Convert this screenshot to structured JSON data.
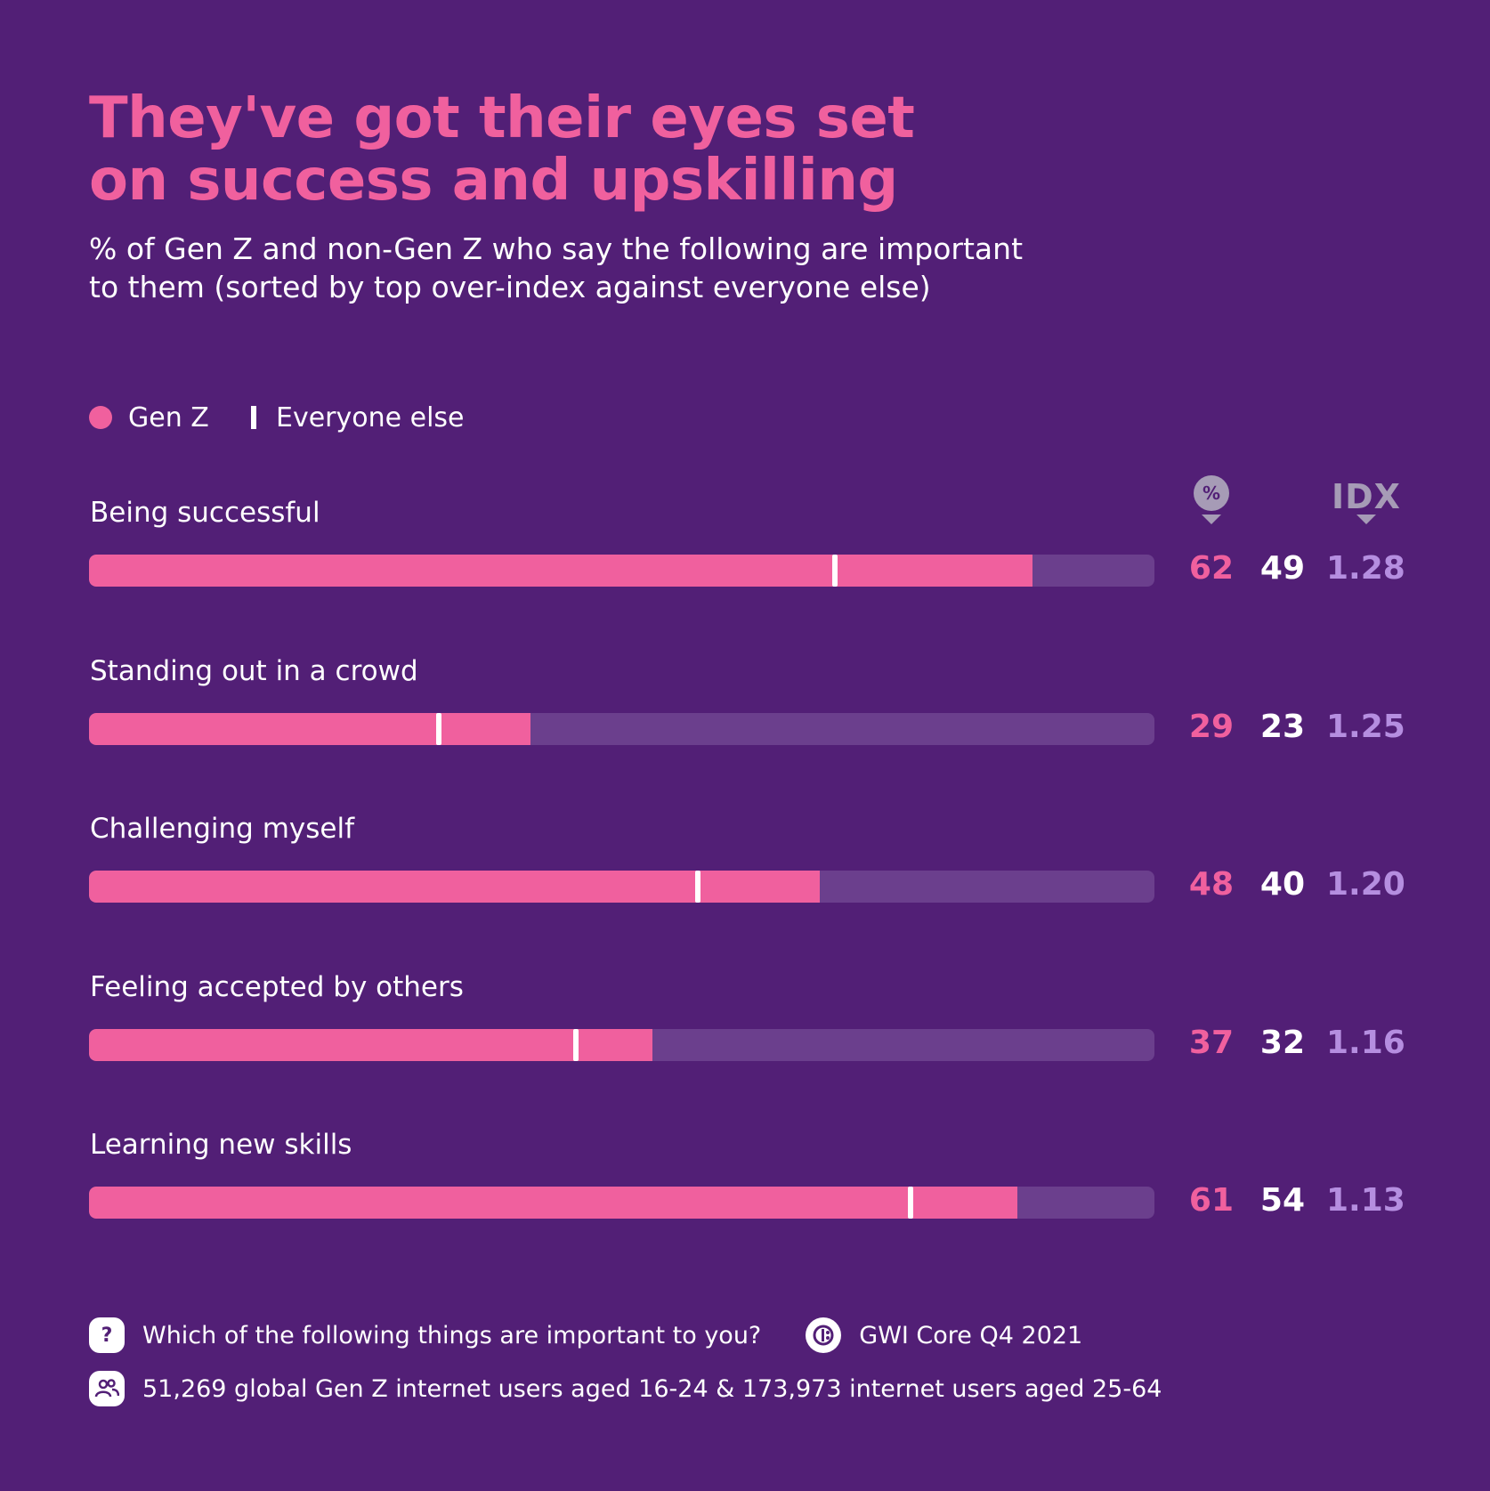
{
  "title_lines": [
    "They've got their eyes set",
    "on success and upskilling"
  ],
  "subtitle_lines": [
    "% of Gen Z and non-Gen Z who say the following are important",
    "to them (sorted by top over-index against everyone else)"
  ],
  "legend": {
    "gen_z": "Gen Z",
    "everyone_else": "Everyone else"
  },
  "columns": {
    "pct_badge": "%",
    "idx": "IDX"
  },
  "colors": {
    "background": "#521f76",
    "gen_z": "#f0609e",
    "track": "#6b3f8d",
    "idx": "#b58ee0",
    "everyone_else": "#ffffff"
  },
  "chart_data": {
    "type": "bar",
    "orientation": "horizontal",
    "title": "They've got their eyes set on success and upskilling",
    "subtitle": "% of Gen Z and non-Gen Z who say the following are important to them (sorted by top over-index against everyone else)",
    "categories": [
      "Being successful",
      "Standing out in a crowd",
      "Challenging myself",
      "Feeling accepted by others",
      "Learning new skills"
    ],
    "series": [
      {
        "name": "Gen Z",
        "values": [
          62,
          29,
          48,
          37,
          61
        ]
      },
      {
        "name": "Everyone else",
        "values": [
          49,
          23,
          40,
          32,
          54
        ]
      }
    ],
    "idx": [
      "1.28",
      "1.25",
      "1.20",
      "1.16",
      "1.13"
    ],
    "xlim": [
      0,
      70
    ]
  },
  "footer": {
    "question": "Which of the following things are important to you?",
    "question_icon": "?",
    "source": "GWI Core Q4 2021",
    "sample": "51,269 global Gen Z internet users aged 16-24 & 173,973 internet users aged 25-64"
  }
}
